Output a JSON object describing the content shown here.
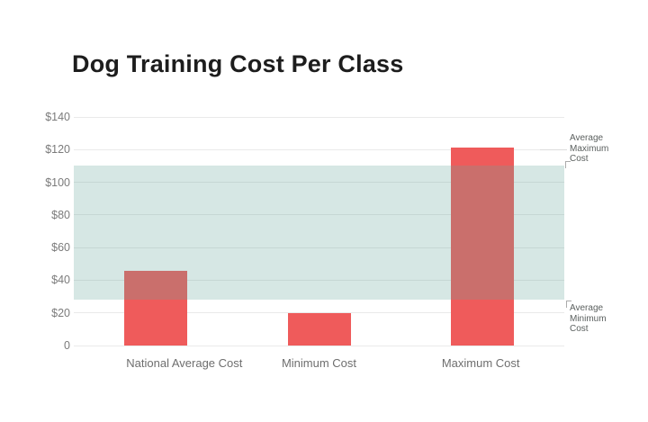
{
  "chart_data": {
    "type": "bar",
    "title": "Dog Training Cost Per Class",
    "categories": [
      "National Average Cost",
      "Minimum Cost",
      "Maximum Cost"
    ],
    "values": [
      46,
      20,
      121
    ],
    "xlabel": "",
    "ylabel": "",
    "ylim": [
      0,
      140
    ],
    "ytick_step": 20,
    "ytick_labels": [
      "0",
      "$20",
      "$40",
      "$60",
      "$80",
      "$100",
      "$120",
      "$140"
    ],
    "grid": true,
    "legend_position": "none",
    "band": {
      "min": 28,
      "max": 110,
      "label_min": "Average Minimum Cost",
      "label_max": "Average Maximum Cost"
    },
    "colors": {
      "bar": "#EF5B5B",
      "band_fill": "rgba(104,168,156,0.27)",
      "gridline": "#EAEAEA",
      "axis_text": "#7B7B7B",
      "category_text": "#6E6E6E",
      "annotation_text": "#5A5F5E",
      "title_text": "#1D1D1D"
    }
  }
}
